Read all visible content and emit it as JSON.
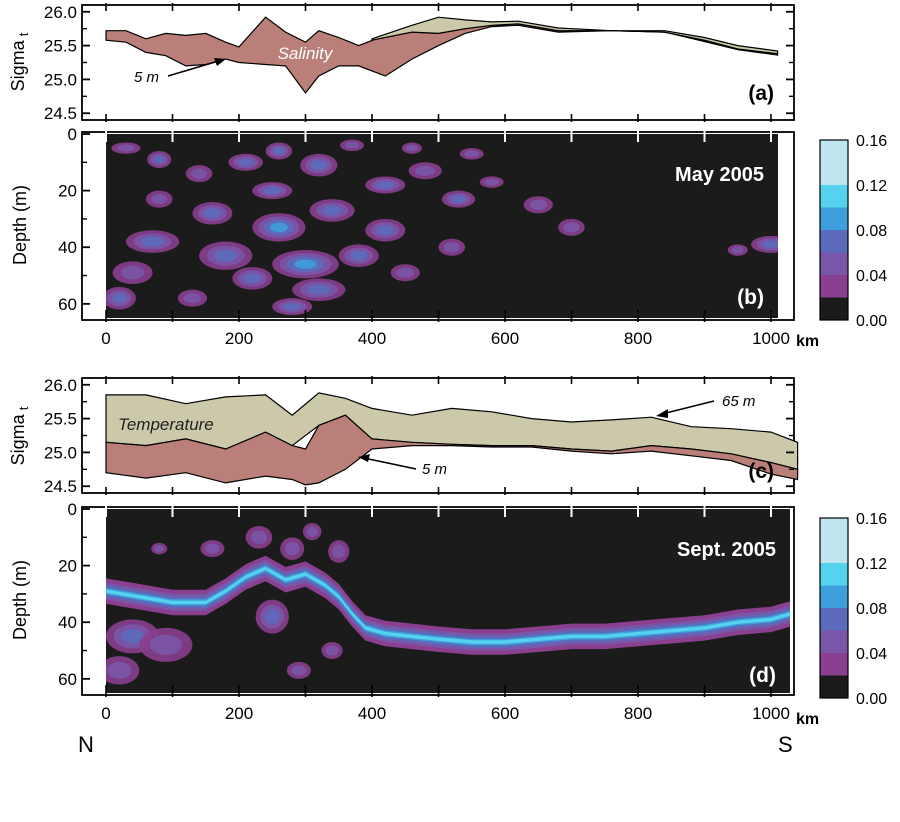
{
  "colors": {
    "salinity_fill": "#b97f78",
    "temperature_fill": "#cbc9a9",
    "background_dark": "#1b1b1b",
    "colorbar": [
      "#1b1b1b",
      "#8a3f8f",
      "#7a56a8",
      "#5b6bbb",
      "#3f9fdc",
      "#55d2ee",
      "#bfe6ef"
    ]
  },
  "chart_data": [
    {
      "id": "a",
      "type": "area",
      "panel_label": "(a)",
      "ylabel": "Sigma",
      "ylabel_sub": "t",
      "ylim": [
        24.4,
        26.1
      ],
      "xlim": [
        0,
        1030
      ],
      "yticks": [
        "24.5",
        "25.0",
        "25.5",
        "26.0"
      ],
      "annotations": [
        "Salinity",
        "5 m"
      ],
      "series": [
        {
          "fill": "salinity",
          "x": [
            0,
            30,
            60,
            90,
            120,
            150,
            180,
            200,
            240,
            270,
            300,
            320,
            350,
            380,
            420,
            460,
            500,
            540,
            580,
            620,
            680,
            760,
            840,
            900,
            950,
            1010
          ],
          "y_top": [
            25.72,
            25.72,
            25.6,
            25.68,
            25.65,
            25.68,
            25.55,
            25.48,
            25.92,
            25.7,
            25.55,
            25.72,
            25.62,
            25.5,
            25.65,
            25.7,
            25.68,
            25.75,
            25.8,
            25.82,
            25.72,
            25.72,
            25.7,
            25.58,
            25.45,
            25.38
          ],
          "y_bottom": [
            25.58,
            25.55,
            25.4,
            25.35,
            25.2,
            25.22,
            25.3,
            25.25,
            25.22,
            25.2,
            24.8,
            25.05,
            25.2,
            25.2,
            25.05,
            25.3,
            25.5,
            25.68,
            25.78,
            25.8,
            25.7,
            25.72,
            25.7,
            25.56,
            25.44,
            25.36
          ]
        },
        {
          "fill": "temperature",
          "x": [
            400,
            460,
            500,
            540,
            580,
            620,
            680,
            760,
            840,
            900,
            950,
            1010
          ],
          "y_top": [
            25.6,
            25.8,
            25.92,
            25.88,
            25.85,
            25.86,
            25.76,
            25.72,
            25.72,
            25.62,
            25.5,
            25.42
          ],
          "y_bottom": [
            25.58,
            25.7,
            25.68,
            25.75,
            25.8,
            25.82,
            25.72,
            25.72,
            25.7,
            25.58,
            25.45,
            25.38
          ]
        }
      ]
    },
    {
      "id": "b",
      "type": "heatmap",
      "panel_label": "(b)",
      "title": "May 2005",
      "ylabel": "Depth (m)",
      "ylim": [
        0,
        65
      ],
      "xlim": [
        0,
        1030
      ],
      "yticks": [
        "0",
        "20",
        "40",
        "60"
      ],
      "xticks": [
        "0",
        "200",
        "400",
        "600",
        "800",
        "1000"
      ],
      "xunit": "km",
      "colorbar": {
        "ticks": [
          "0.16",
          "0.12",
          "0.08",
          "0.04",
          "0.00"
        ],
        "range": [
          0,
          0.16
        ]
      },
      "blobs": [
        [
          30,
          5,
          22,
          2,
          0.03
        ],
        [
          80,
          9,
          18,
          3,
          0.05
        ],
        [
          140,
          14,
          20,
          3,
          0.04
        ],
        [
          210,
          10,
          26,
          3,
          0.05
        ],
        [
          260,
          6,
          20,
          3,
          0.06
        ],
        [
          320,
          11,
          28,
          4,
          0.06
        ],
        [
          370,
          4,
          18,
          2,
          0.04
        ],
        [
          420,
          18,
          30,
          3,
          0.05
        ],
        [
          480,
          13,
          25,
          3,
          0.04
        ],
        [
          530,
          23,
          25,
          3,
          0.05
        ],
        [
          580,
          17,
          18,
          2,
          0.03
        ],
        [
          650,
          25,
          22,
          3,
          0.04
        ],
        [
          700,
          33,
          20,
          3,
          0.04
        ],
        [
          160,
          28,
          30,
          4,
          0.05
        ],
        [
          260,
          33,
          40,
          5,
          0.07
        ],
        [
          340,
          27,
          34,
          4,
          0.06
        ],
        [
          420,
          34,
          30,
          4,
          0.05
        ],
        [
          70,
          38,
          40,
          4,
          0.05
        ],
        [
          180,
          43,
          40,
          5,
          0.06
        ],
        [
          300,
          46,
          50,
          5,
          0.07
        ],
        [
          380,
          43,
          30,
          4,
          0.05
        ],
        [
          40,
          49,
          30,
          4,
          0.04
        ],
        [
          220,
          51,
          30,
          4,
          0.06
        ],
        [
          320,
          55,
          40,
          4,
          0.05
        ],
        [
          450,
          49,
          22,
          3,
          0.04
        ],
        [
          20,
          58,
          25,
          4,
          0.05
        ],
        [
          130,
          58,
          22,
          3,
          0.04
        ],
        [
          280,
          61,
          30,
          3,
          0.05
        ],
        [
          80,
          23,
          20,
          3,
          0.04
        ],
        [
          250,
          20,
          30,
          3,
          0.05
        ],
        [
          520,
          40,
          20,
          3,
          0.04
        ],
        [
          1000,
          39,
          30,
          3,
          0.05
        ],
        [
          950,
          41,
          15,
          2,
          0.04
        ],
        [
          550,
          7,
          18,
          2,
          0.03
        ],
        [
          460,
          5,
          15,
          2,
          0.03
        ]
      ]
    },
    {
      "id": "c",
      "type": "area",
      "panel_label": "(c)",
      "ylabel": "Sigma",
      "ylabel_sub": "t",
      "ylim": [
        24.4,
        26.1
      ],
      "xlim": [
        0,
        1030
      ],
      "yticks": [
        "24.5",
        "25.0",
        "25.5",
        "26.0"
      ],
      "annotations": [
        "Temperature",
        "65 m",
        "5 m"
      ],
      "series": [
        {
          "fill": "temperature",
          "x": [
            0,
            60,
            120,
            180,
            240,
            280,
            320,
            360,
            400,
            460,
            520,
            580,
            640,
            700,
            760,
            820,
            880,
            940,
            1000,
            1040
          ],
          "y_top": [
            25.85,
            25.85,
            25.72,
            25.82,
            25.85,
            25.55,
            25.88,
            25.8,
            25.65,
            25.55,
            25.65,
            25.6,
            25.5,
            25.45,
            25.48,
            25.52,
            25.38,
            25.35,
            25.3,
            25.15
          ],
          "y_bottom": [
            25.15,
            25.1,
            25.2,
            25.05,
            25.3,
            25.1,
            25.4,
            25.55,
            25.2,
            25.15,
            25.12,
            25.1,
            25.1,
            25.05,
            25.02,
            25.1,
            25.05,
            24.98,
            24.85,
            24.75
          ]
        },
        {
          "fill": "salinity",
          "x": [
            0,
            60,
            120,
            180,
            240,
            280,
            300,
            320,
            360,
            400,
            460,
            520,
            580,
            640,
            700,
            760,
            820,
            880,
            940,
            1000,
            1040
          ],
          "y_top": [
            25.15,
            25.1,
            25.2,
            25.05,
            25.3,
            25.1,
            25.05,
            25.4,
            25.55,
            25.2,
            25.15,
            25.12,
            25.1,
            25.1,
            25.05,
            25.02,
            25.1,
            25.05,
            24.98,
            24.85,
            24.75
          ],
          "y_bottom": [
            24.7,
            24.62,
            24.7,
            24.55,
            24.65,
            24.6,
            24.52,
            24.55,
            24.75,
            25.05,
            25.1,
            25.1,
            25.08,
            25.08,
            25.02,
            24.98,
            25.02,
            24.95,
            24.88,
            24.68,
            24.6
          ]
        }
      ]
    },
    {
      "id": "d",
      "type": "heatmap",
      "panel_label": "(d)",
      "title": "Sept. 2005",
      "ylabel": "Depth (m)",
      "ylim": [
        0,
        65
      ],
      "xlim": [
        0,
        1030
      ],
      "yticks": [
        "0",
        "20",
        "40",
        "60"
      ],
      "xticks": [
        "0",
        "200",
        "400",
        "600",
        "800",
        "1000"
      ],
      "xunit": "km",
      "colorbar": {
        "ticks": [
          "0.16",
          "0.12",
          "0.08",
          "0.04",
          "0.00"
        ],
        "range": [
          0,
          0.16
        ]
      },
      "layer": {
        "x": [
          0,
          50,
          100,
          150,
          180,
          210,
          240,
          270,
          300,
          330,
          350,
          370,
          390,
          420,
          460,
          500,
          550,
          600,
          650,
          700,
          750,
          800,
          850,
          900,
          950,
          1000,
          1030
        ],
        "depth": [
          29,
          31,
          33,
          33,
          29,
          24,
          21,
          25,
          23,
          27,
          31,
          37,
          42,
          44,
          45,
          46,
          47,
          47,
          46,
          45,
          45,
          44,
          43,
          42,
          40,
          39,
          37
        ],
        "intensity": [
          0.11,
          0.1,
          0.1,
          0.09,
          0.08,
          0.08,
          0.08,
          0.08,
          0.08,
          0.08,
          0.08,
          0.09,
          0.11,
          0.12,
          0.12,
          0.12,
          0.13,
          0.12,
          0.12,
          0.11,
          0.11,
          0.11,
          0.12,
          0.11,
          0.11,
          0.12,
          0.1
        ]
      },
      "blobs": [
        [
          40,
          45,
          40,
          6,
          0.05
        ],
        [
          90,
          48,
          40,
          6,
          0.04
        ],
        [
          20,
          57,
          30,
          5,
          0.04
        ],
        [
          230,
          10,
          20,
          4,
          0.04
        ],
        [
          160,
          14,
          18,
          3,
          0.03
        ],
        [
          280,
          14,
          18,
          4,
          0.04
        ],
        [
          310,
          8,
          14,
          3,
          0.03
        ],
        [
          80,
          14,
          12,
          2,
          0.03
        ],
        [
          290,
          57,
          18,
          3,
          0.03
        ],
        [
          340,
          50,
          16,
          3,
          0.03
        ],
        [
          350,
          15,
          16,
          4,
          0.04
        ],
        [
          250,
          38,
          25,
          6,
          0.05
        ]
      ]
    }
  ],
  "figure_text": {
    "unit_top": "km",
    "unit_bottom": "km",
    "north": "N",
    "south": "S"
  }
}
